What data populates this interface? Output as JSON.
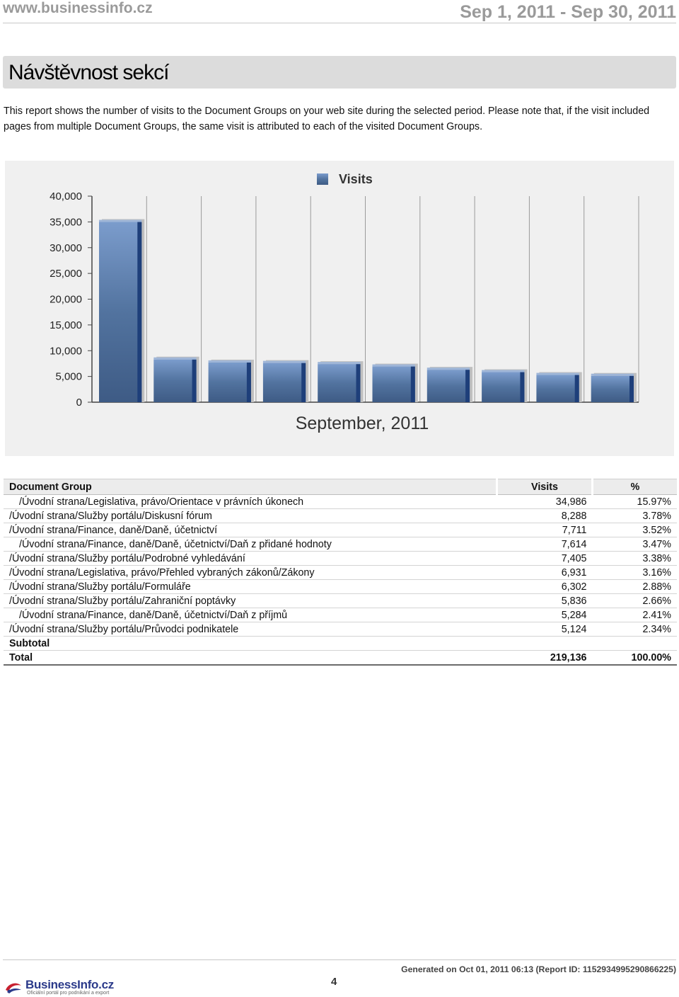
{
  "header": {
    "site": "www.businessinfo.cz",
    "date_range": "Sep 1, 2011 - Sep 30, 2011"
  },
  "section": {
    "title": "Návštěvnost sekcí",
    "description": "This report shows the number of visits to the Document Groups on your web site during the selected period. Please note that, if the visit included pages from multiple Document Groups, the same visit is attributed to each of the visited Document Groups."
  },
  "chart_data": {
    "type": "bar",
    "legend": "Visits",
    "legend_position": "top",
    "xlabel": "September, 2011",
    "ylim": [
      0,
      40000
    ],
    "yticks": [
      "0",
      "5,000",
      "10,000",
      "15,000",
      "20,000",
      "25,000",
      "30,000",
      "35,000",
      "40,000"
    ],
    "grid": true,
    "series": [
      {
        "name": "Visits",
        "values": [
          34986,
          8288,
          7711,
          7614,
          7405,
          6931,
          6302,
          5836,
          5284,
          5124
        ]
      }
    ],
    "colors": {
      "bar": "#4a6fa5",
      "bar_edge": "#1e3f7a",
      "axis": "#444444"
    }
  },
  "table": {
    "headers": {
      "group": "Document Group",
      "visits": "Visits",
      "pct": "%"
    },
    "rows": [
      {
        "group": "/Úvodní strana/Legislativa, právo/Orientace v právních úkonech",
        "visits": "34,986",
        "pct": "15.97%",
        "indent": true
      },
      {
        "group": "/Úvodní strana/Služby portálu/Diskusní fórum",
        "visits": "8,288",
        "pct": "3.78%",
        "indent": false
      },
      {
        "group": "/Úvodní strana/Finance, daně/Daně, účetnictví",
        "visits": "7,711",
        "pct": "3.52%",
        "indent": false
      },
      {
        "group": "/Úvodní strana/Finance, daně/Daně, účetnictví/Daň z přidané hodnoty",
        "visits": "7,614",
        "pct": "3.47%",
        "indent": true
      },
      {
        "group": "/Úvodní strana/Služby portálu/Podrobné vyhledávání",
        "visits": "7,405",
        "pct": "3.38%",
        "indent": false
      },
      {
        "group": "/Úvodní strana/Legislativa, právo/Přehled vybraných zákonů/Zákony",
        "visits": "6,931",
        "pct": "3.16%",
        "indent": false
      },
      {
        "group": "/Úvodní strana/Služby portálu/Formuláře",
        "visits": "6,302",
        "pct": "2.88%",
        "indent": false
      },
      {
        "group": "/Úvodní strana/Služby portálu/Zahraniční poptávky",
        "visits": "5,836",
        "pct": "2.66%",
        "indent": false
      },
      {
        "group": "/Úvodní strana/Finance, daně/Daně, účetnictví/Daň z příjmů",
        "visits": "5,284",
        "pct": "2.41%",
        "indent": true
      },
      {
        "group": "/Úvodní strana/Služby portálu/Průvodci podnikatele",
        "visits": "5,124",
        "pct": "2.34%",
        "indent": false
      }
    ],
    "subtotal_label": "Subtotal",
    "total_label": "Total",
    "total_visits": "219,136",
    "total_pct": "100.00%"
  },
  "footer": {
    "logo_name": "BusinessInfo.cz",
    "logo_tagline": "Oficiální portál pro podnikání a export",
    "page_number": "4",
    "generated": "Generated on Oct 01, 2011 06:13 (Report ID: 1152934995290866225)"
  }
}
